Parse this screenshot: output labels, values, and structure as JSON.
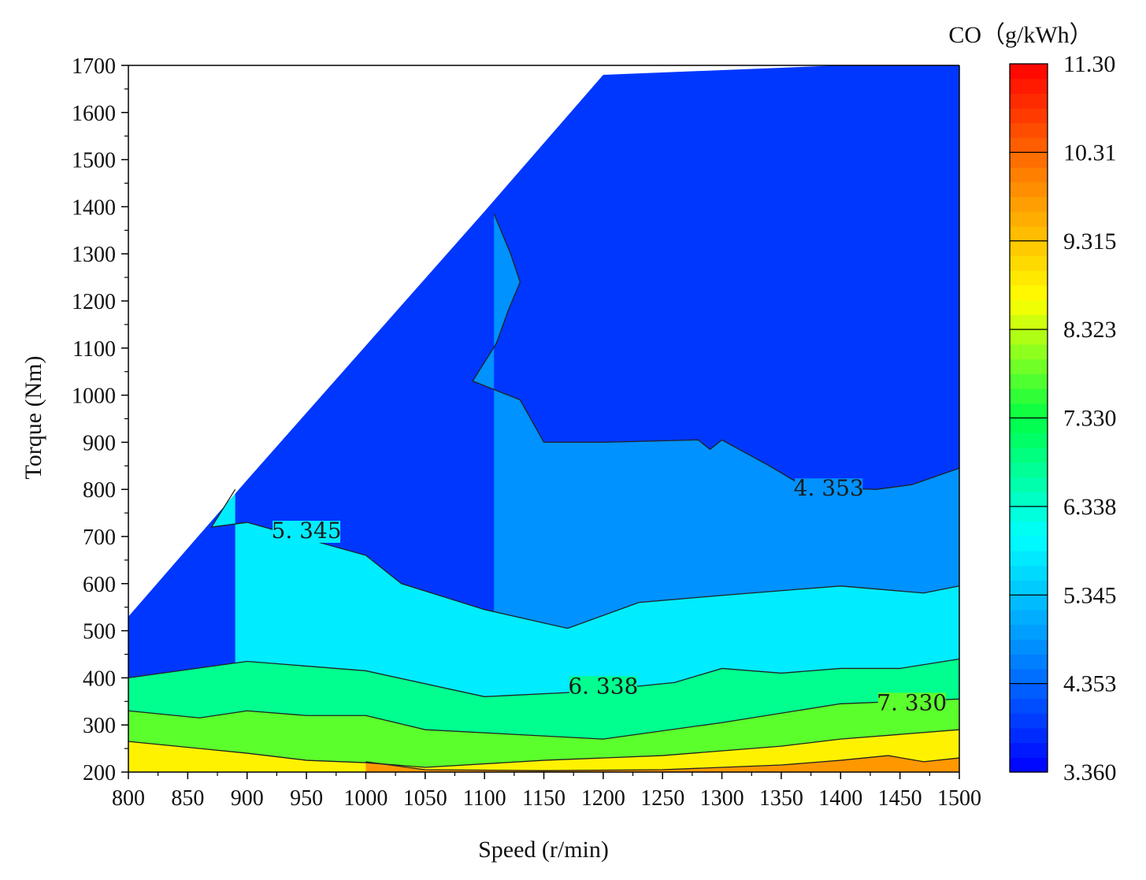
{
  "chart_data": {
    "type": "heatmap",
    "subtype": "filled-contour",
    "xlabel": "Speed (r/min)",
    "ylabel": "Torque (Nm)",
    "xlim": [
      800,
      1500
    ],
    "ylim": [
      200,
      1700
    ],
    "x_ticks": [
      800,
      850,
      900,
      950,
      1000,
      1050,
      1100,
      1150,
      1200,
      1250,
      1300,
      1350,
      1400,
      1450,
      1500
    ],
    "y_ticks": [
      200,
      300,
      400,
      500,
      600,
      700,
      800,
      900,
      1000,
      1100,
      1200,
      1300,
      1400,
      1500,
      1600,
      1700
    ],
    "colorbar": {
      "title": "CO（g/kWh）",
      "range": [
        3.36,
        11.3
      ],
      "labels": [
        "3.360",
        "4.353",
        "5.345",
        "6.338",
        "7.330",
        "8.323",
        "9.315",
        "10.31",
        "11.30"
      ],
      "colors": [
        "#0000ff",
        "#0088ff",
        "#00ffff",
        "#00ff44",
        "#ffff00",
        "#ff8800",
        "#ff0000"
      ]
    },
    "valid_region_boundary": [
      [
        800,
        530
      ],
      [
        900,
        820
      ],
      [
        1100,
        1390
      ],
      [
        1200,
        1680
      ],
      [
        1500,
        1710
      ]
    ],
    "contours": [
      {
        "level": "4.353",
        "label": "4.353",
        "label_at": [
          1390,
          790
        ],
        "points": [
          [
            1108,
            1385
          ],
          [
            1122,
            1300
          ],
          [
            1130,
            1240
          ],
          [
            1120,
            1180
          ],
          [
            1110,
            1110
          ],
          [
            1090,
            1030
          ],
          [
            1130,
            990
          ],
          [
            1150,
            900
          ],
          [
            1200,
            900
          ],
          [
            1280,
            905
          ],
          [
            1290,
            885
          ],
          [
            1300,
            905
          ],
          [
            1340,
            850
          ],
          [
            1370,
            805
          ],
          [
            1430,
            800
          ],
          [
            1460,
            810
          ],
          [
            1500,
            845
          ]
        ]
      },
      {
        "level": "5.345",
        "label": "5.345",
        "label_at": [
          950,
          700
        ],
        "points": [
          [
            890,
            800
          ],
          [
            870,
            720
          ],
          [
            900,
            730
          ],
          [
            1000,
            660
          ],
          [
            1030,
            600
          ],
          [
            1100,
            545
          ],
          [
            1170,
            505
          ],
          [
            1230,
            560
          ],
          [
            1300,
            575
          ],
          [
            1400,
            595
          ],
          [
            1470,
            580
          ],
          [
            1500,
            595
          ]
        ]
      },
      {
        "level": "6.338",
        "label": "6.338",
        "label_at": [
          1200,
          370
        ],
        "points": [
          [
            800,
            400
          ],
          [
            900,
            435
          ],
          [
            1000,
            415
          ],
          [
            1100,
            360
          ],
          [
            1180,
            370
          ],
          [
            1260,
            390
          ],
          [
            1300,
            420
          ],
          [
            1350,
            410
          ],
          [
            1400,
            420
          ],
          [
            1450,
            420
          ],
          [
            1500,
            440
          ]
        ]
      },
      {
        "level": "7.330",
        "label": "7.330",
        "label_at": [
          1460,
          335
        ],
        "points": [
          [
            800,
            330
          ],
          [
            860,
            315
          ],
          [
            900,
            330
          ],
          [
            950,
            320
          ],
          [
            1000,
            320
          ],
          [
            1050,
            290
          ],
          [
            1200,
            270
          ],
          [
            1300,
            305
          ],
          [
            1400,
            345
          ],
          [
            1500,
            355
          ]
        ]
      },
      {
        "level": "8.323",
        "label": "",
        "points": [
          [
            800,
            265
          ],
          [
            900,
            240
          ],
          [
            950,
            225
          ],
          [
            1000,
            220
          ],
          [
            1050,
            210
          ],
          [
            1150,
            225
          ],
          [
            1250,
            235
          ],
          [
            1350,
            255
          ],
          [
            1400,
            270
          ],
          [
            1500,
            290
          ]
        ]
      },
      {
        "level": "9.315",
        "label": "",
        "points": [
          [
            1000,
            222
          ],
          [
            1050,
            205
          ],
          [
            1150,
            203
          ],
          [
            1250,
            205
          ],
          [
            1350,
            215
          ],
          [
            1400,
            225
          ],
          [
            1440,
            235
          ],
          [
            1470,
            222
          ],
          [
            1500,
            230
          ]
        ]
      }
    ]
  }
}
